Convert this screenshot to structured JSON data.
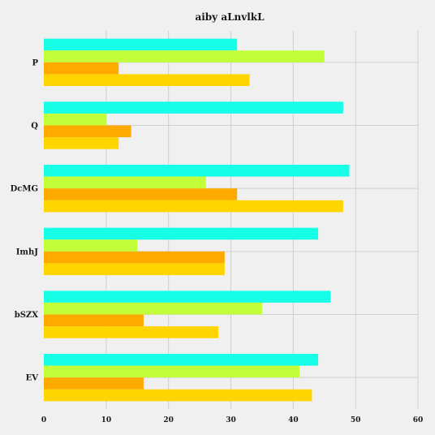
{
  "chart_data": {
    "type": "bar",
    "orientation": "horizontal",
    "title": "aiby aLnvlkL",
    "xlabel": "",
    "ylabel": "",
    "xlim": [
      0,
      60
    ],
    "xticks": [
      0,
      10,
      20,
      30,
      40,
      50,
      60
    ],
    "grid": true,
    "legend": "none",
    "categories": [
      "P",
      "Q",
      "DcMG",
      "ImhJ",
      "bSZX",
      "EV"
    ],
    "series": [
      {
        "color": "#18ffe8",
        "values": [
          31,
          48,
          49,
          44,
          46,
          44
        ]
      },
      {
        "color": "#c2ff3a",
        "values": [
          45,
          10,
          26,
          15,
          35,
          41
        ]
      },
      {
        "color": "#ffaa00",
        "values": [
          12,
          14,
          31,
          29,
          16,
          16
        ]
      },
      {
        "color": "#ffd500",
        "values": [
          33,
          12,
          48,
          29,
          28,
          43
        ]
      }
    ]
  }
}
